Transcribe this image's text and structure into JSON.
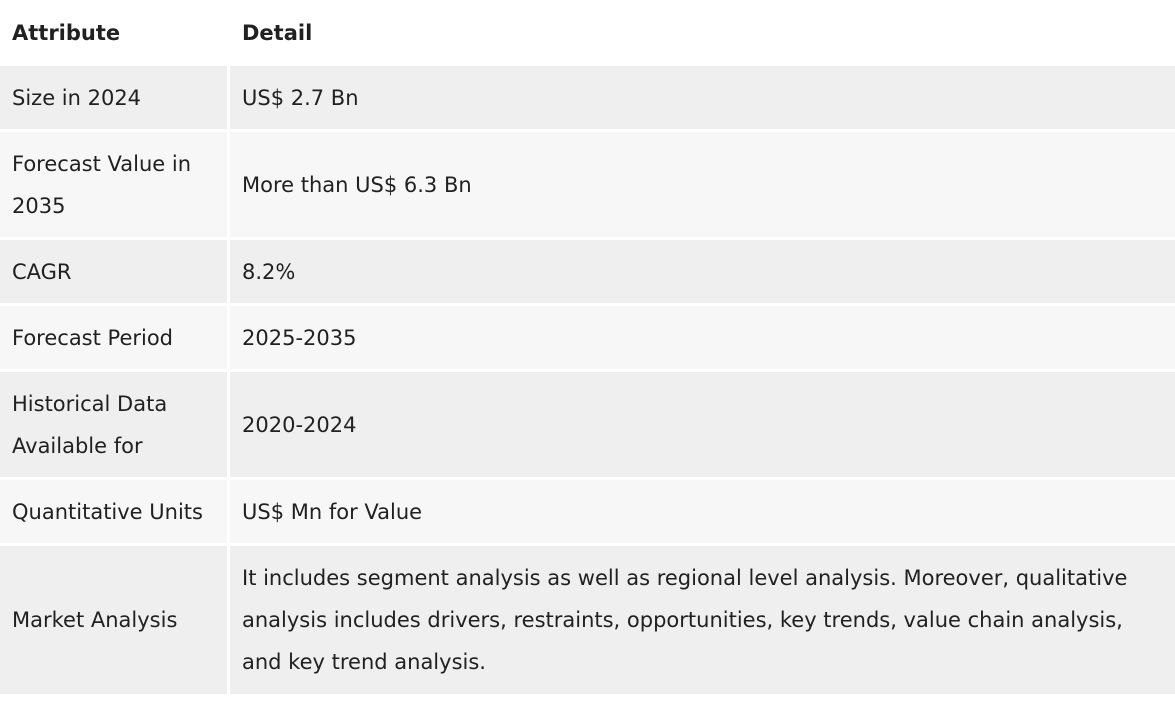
{
  "table": {
    "headers": [
      "Attribute",
      "Detail"
    ],
    "rows": [
      {
        "attribute": "Size in 2024",
        "detail": "US$ 2.7 Bn"
      },
      {
        "attribute": "Forecast Value in 2035",
        "detail": "More than US$ 6.3 Bn"
      },
      {
        "attribute": "CAGR",
        "detail": "8.2%"
      },
      {
        "attribute": "Forecast Period",
        "detail": "2025-2035"
      },
      {
        "attribute": "Historical Data Available for",
        "detail": "2020-2024"
      },
      {
        "attribute": "Quantitative Units",
        "detail": "US$ Mn for Value"
      },
      {
        "attribute": "Market Analysis",
        "detail": "It includes segment analysis as well as regional level analysis. Moreover, qualitative analysis includes drivers, restraints, opportunities, key trends, value chain analysis, and key trend analysis."
      }
    ]
  }
}
